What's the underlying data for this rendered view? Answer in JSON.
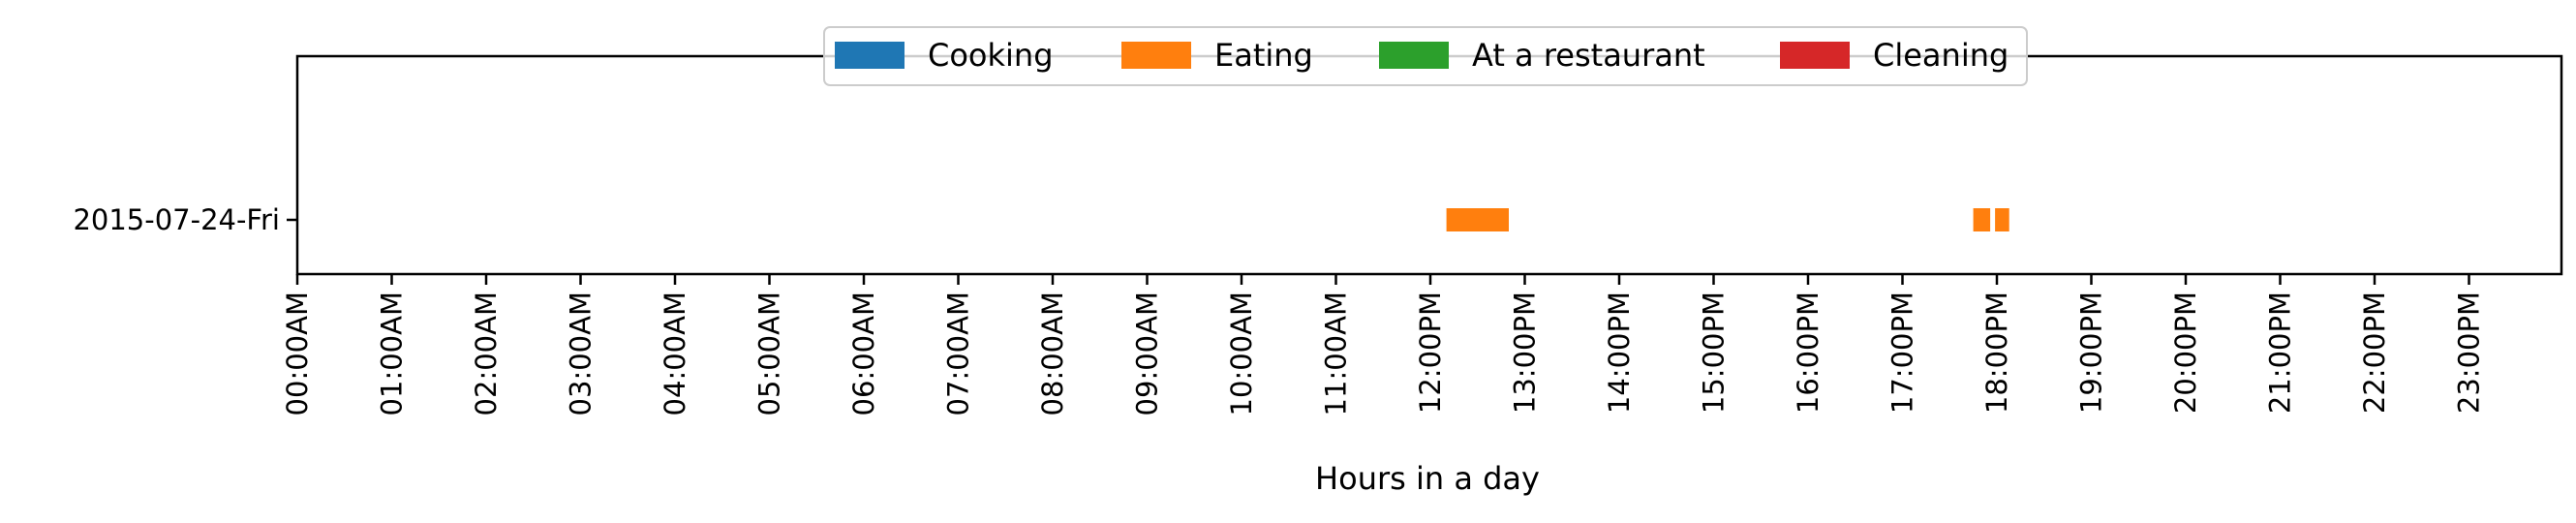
{
  "chart_data": {
    "type": "timeline",
    "title": "",
    "xlabel": "Hours in a day",
    "ylabel": "",
    "xlim": [
      0,
      24
    ],
    "grid": false,
    "legend_placement": "top-center",
    "categories": [
      "2015-07-24-Fri"
    ],
    "x_tick_labels": [
      "00:00AM",
      "01:00AM",
      "02:00AM",
      "03:00AM",
      "04:00AM",
      "05:00AM",
      "06:00AM",
      "07:00AM",
      "08:00AM",
      "09:00AM",
      "10:00AM",
      "11:00AM",
      "12:00PM",
      "13:00PM",
      "14:00PM",
      "15:00PM",
      "16:00PM",
      "17:00PM",
      "18:00PM",
      "19:00PM",
      "20:00PM",
      "21:00PM",
      "22:00PM",
      "23:00PM"
    ],
    "legend": [
      {
        "name": "Cooking",
        "color": "#1f77b4"
      },
      {
        "name": "Eating",
        "color": "#ff7f0e"
      },
      {
        "name": "At a restaurant",
        "color": "#2ca02c"
      },
      {
        "name": "Cleaning",
        "color": "#d62728"
      }
    ],
    "series": [
      {
        "name": "Cooking",
        "intervals": []
      },
      {
        "name": "Eating",
        "intervals": [
          {
            "day": "2015-07-24-Fri",
            "start": 12.17,
            "end": 12.83
          },
          {
            "day": "2015-07-24-Fri",
            "start": 17.75,
            "end": 17.93
          },
          {
            "day": "2015-07-24-Fri",
            "start": 17.98,
            "end": 18.13
          }
        ]
      },
      {
        "name": "At a restaurant",
        "intervals": []
      },
      {
        "name": "Cleaning",
        "intervals": []
      }
    ]
  }
}
